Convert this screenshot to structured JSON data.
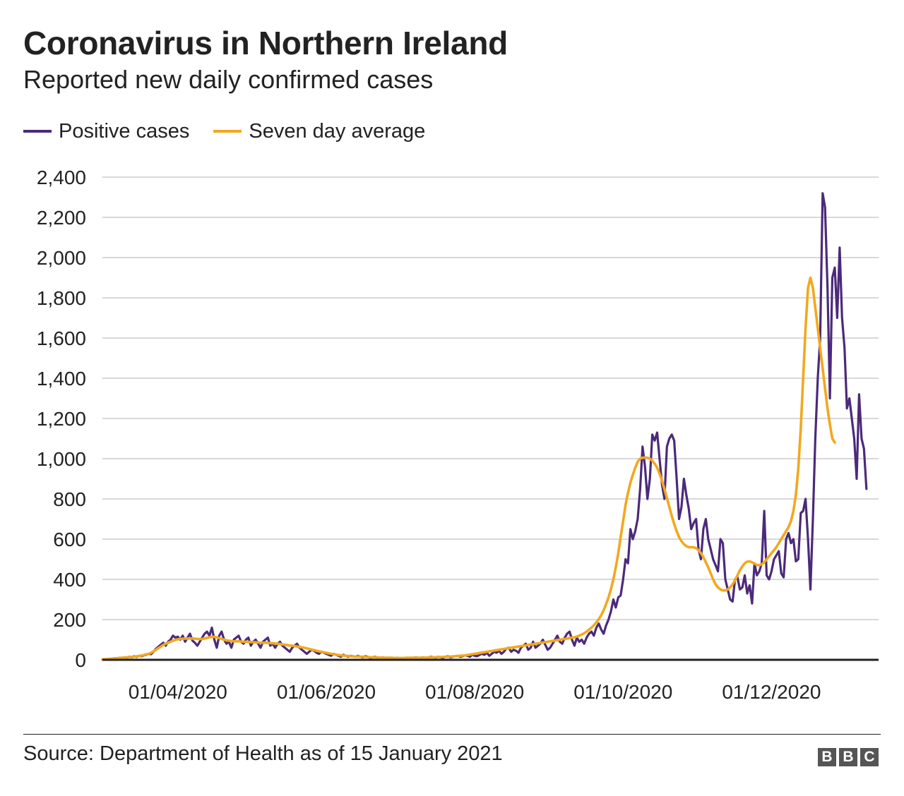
{
  "header": {
    "title": "Coronavirus in Northern Ireland",
    "subtitle": "Reported new daily confirmed cases"
  },
  "footer": {
    "source": "Source: Department of Health as of 15 January 2021",
    "logo_letters": [
      "B",
      "B",
      "C"
    ]
  },
  "colors": {
    "positive": "#4b2a7a",
    "average": "#f2a81d",
    "grid": "#cccccc",
    "axis": "#222222"
  },
  "chart_data": {
    "type": "line",
    "x_start_date": "2020-03-01",
    "x_step": "1 day",
    "xlim": [
      "2020-03-01",
      "2021-01-14"
    ],
    "ylim": [
      0,
      2400
    ],
    "yticks": [
      0,
      200,
      400,
      600,
      800,
      1000,
      1200,
      1400,
      1600,
      1800,
      2000,
      2200,
      2400
    ],
    "ytick_labels": [
      "0",
      "200",
      "400",
      "600",
      "800",
      "1,000",
      "1,200",
      "1,400",
      "1,600",
      "1,800",
      "2,000",
      "2,200",
      "2,400"
    ],
    "xticks": [
      "2020-04-01",
      "2020-06-01",
      "2020-08-01",
      "2020-10-01",
      "2020-12-01"
    ],
    "xtick_labels": [
      "01/04/2020",
      "01/06/2020",
      "01/08/2020",
      "01/10/2020",
      "01/12/2020"
    ],
    "grid": "horizontal",
    "legend_position": "top-left",
    "series": [
      {
        "name": "Positive cases",
        "color": "#4b2a7a",
        "values": [
          1,
          3,
          2,
          5,
          4,
          8,
          6,
          10,
          7,
          12,
          9,
          15,
          12,
          18,
          14,
          20,
          18,
          22,
          25,
          30,
          28,
          40,
          55,
          65,
          75,
          85,
          70,
          90,
          100,
          120,
          110,
          115,
          100,
          120,
          90,
          110,
          130,
          95,
          85,
          70,
          90,
          110,
          130,
          140,
          120,
          160,
          100,
          60,
          120,
          140,
          100,
          80,
          90,
          60,
          100,
          110,
          120,
          90,
          80,
          100,
          110,
          70,
          90,
          100,
          80,
          60,
          90,
          100,
          110,
          70,
          80,
          60,
          80,
          90,
          70,
          60,
          50,
          40,
          60,
          70,
          80,
          60,
          50,
          40,
          30,
          40,
          50,
          45,
          35,
          30,
          40,
          35,
          30,
          25,
          20,
          30,
          25,
          20,
          15,
          25,
          20,
          15,
          20,
          18,
          15,
          20,
          15,
          12,
          18,
          15,
          10,
          12,
          15,
          10,
          8,
          12,
          10,
          8,
          10,
          8,
          6,
          10,
          8,
          6,
          8,
          10,
          6,
          8,
          10,
          12,
          8,
          10,
          12,
          8,
          10,
          15,
          12,
          10,
          15,
          12,
          10,
          15,
          18,
          12,
          15,
          18,
          20,
          15,
          18,
          22,
          20,
          15,
          25,
          20,
          18,
          25,
          30,
          25,
          35,
          20,
          30,
          40,
          35,
          45,
          30,
          40,
          55,
          60,
          40,
          50,
          45,
          35,
          60,
          70,
          80,
          50,
          60,
          90,
          60,
          70,
          80,
          100,
          75,
          50,
          60,
          80,
          100,
          120,
          90,
          80,
          110,
          130,
          140,
          100,
          70,
          110,
          90,
          100,
          80,
          110,
          130,
          140,
          120,
          160,
          180,
          150,
          130,
          170,
          200,
          240,
          300,
          260,
          310,
          320,
          400,
          500,
          480,
          650,
          600,
          640,
          700,
          850,
          1060,
          960,
          800,
          900,
          1120,
          1090,
          1130,
          1000,
          870,
          800,
          1060,
          1100,
          1120,
          1090,
          900,
          700,
          760,
          900,
          820,
          750,
          650,
          680,
          700,
          550,
          500,
          650,
          700,
          600,
          550,
          500,
          470,
          440,
          600,
          580,
          400,
          350,
          300,
          290,
          400,
          410,
          350,
          360,
          420,
          330,
          370,
          280,
          480,
          420,
          440,
          480,
          740,
          420,
          400,
          440,
          500,
          520,
          540,
          430,
          410,
          600,
          630,
          580,
          600,
          490,
          500,
          730,
          740,
          800,
          600,
          350,
          700,
          1100,
          1400,
          1600,
          2320,
          2250,
          1850,
          1300,
          1900,
          1950,
          1700,
          2050,
          1700,
          1550,
          1250,
          1300,
          1200,
          1100,
          900,
          1320,
          1100,
          1050,
          850
        ]
      },
      {
        "name": "Seven day average",
        "color": "#f2a81d",
        "values": [
          2,
          3,
          4,
          5,
          6,
          7,
          8,
          9,
          10,
          11,
          12,
          13,
          14,
          15,
          17,
          19,
          21,
          24,
          27,
          30,
          35,
          42,
          50,
          58,
          66,
          74,
          80,
          85,
          90,
          95,
          99,
          102,
          104,
          105,
          105,
          106,
          106,
          106,
          105,
          104,
          103,
          104,
          106,
          109,
          112,
          114,
          114,
          112,
          108,
          104,
          100,
          97,
          95,
          93,
          92,
          92,
          92,
          91,
          90,
          90,
          89,
          88,
          88,
          87,
          86,
          85,
          85,
          85,
          84,
          83,
          82,
          81,
          80,
          79,
          77,
          75,
          73,
          71,
          70,
          68,
          66,
          64,
          62,
          60,
          57,
          54,
          51,
          48,
          45,
          42,
          40,
          37,
          35,
          32,
          30,
          28,
          26,
          24,
          22,
          21,
          20,
          19,
          18,
          17,
          16,
          16,
          15,
          15,
          14,
          14,
          13,
          13,
          12,
          12,
          11,
          11,
          10,
          10,
          10,
          10,
          9,
          9,
          9,
          9,
          9,
          10,
          10,
          10,
          10,
          10,
          10,
          11,
          11,
          11,
          12,
          12,
          12,
          13,
          13,
          14,
          14,
          15,
          15,
          16,
          17,
          18,
          19,
          20,
          21,
          22,
          24,
          26,
          28,
          30,
          32,
          34,
          36,
          38,
          40,
          42,
          44,
          46,
          48,
          50,
          52,
          54,
          56,
          58,
          60,
          62,
          64,
          66,
          68,
          70,
          72,
          74,
          76,
          78,
          80,
          82,
          84,
          86,
          88,
          90,
          92,
          94,
          96,
          98,
          100,
          102,
          104,
          106,
          108,
          110,
          112,
          116,
          120,
          126,
          132,
          140,
          150,
          160,
          172,
          186,
          202,
          222,
          246,
          276,
          310,
          350,
          400,
          460,
          530,
          610,
          690,
          770,
          830,
          880,
          920,
          955,
          985,
          1000,
          1005,
          1005,
          1005,
          1000,
          990,
          975,
          955,
          925,
          890,
          850,
          805,
          760,
          715,
          675,
          640,
          610,
          590,
          575,
          565,
          560,
          560,
          560,
          555,
          545,
          530,
          510,
          485,
          460,
          430,
          400,
          375,
          360,
          350,
          345,
          345,
          350,
          360,
          375,
          395,
          420,
          445,
          465,
          480,
          488,
          490,
          485,
          478,
          472,
          470,
          475,
          485,
          500,
          515,
          530,
          545,
          560,
          580,
          600,
          620,
          640,
          660,
          690,
          740,
          820,
          950,
          1150,
          1400,
          1650,
          1850,
          1900,
          1850,
          1750,
          1650,
          1550,
          1450,
          1350,
          1250,
          1170,
          1100,
          1080
        ]
      }
    ]
  }
}
